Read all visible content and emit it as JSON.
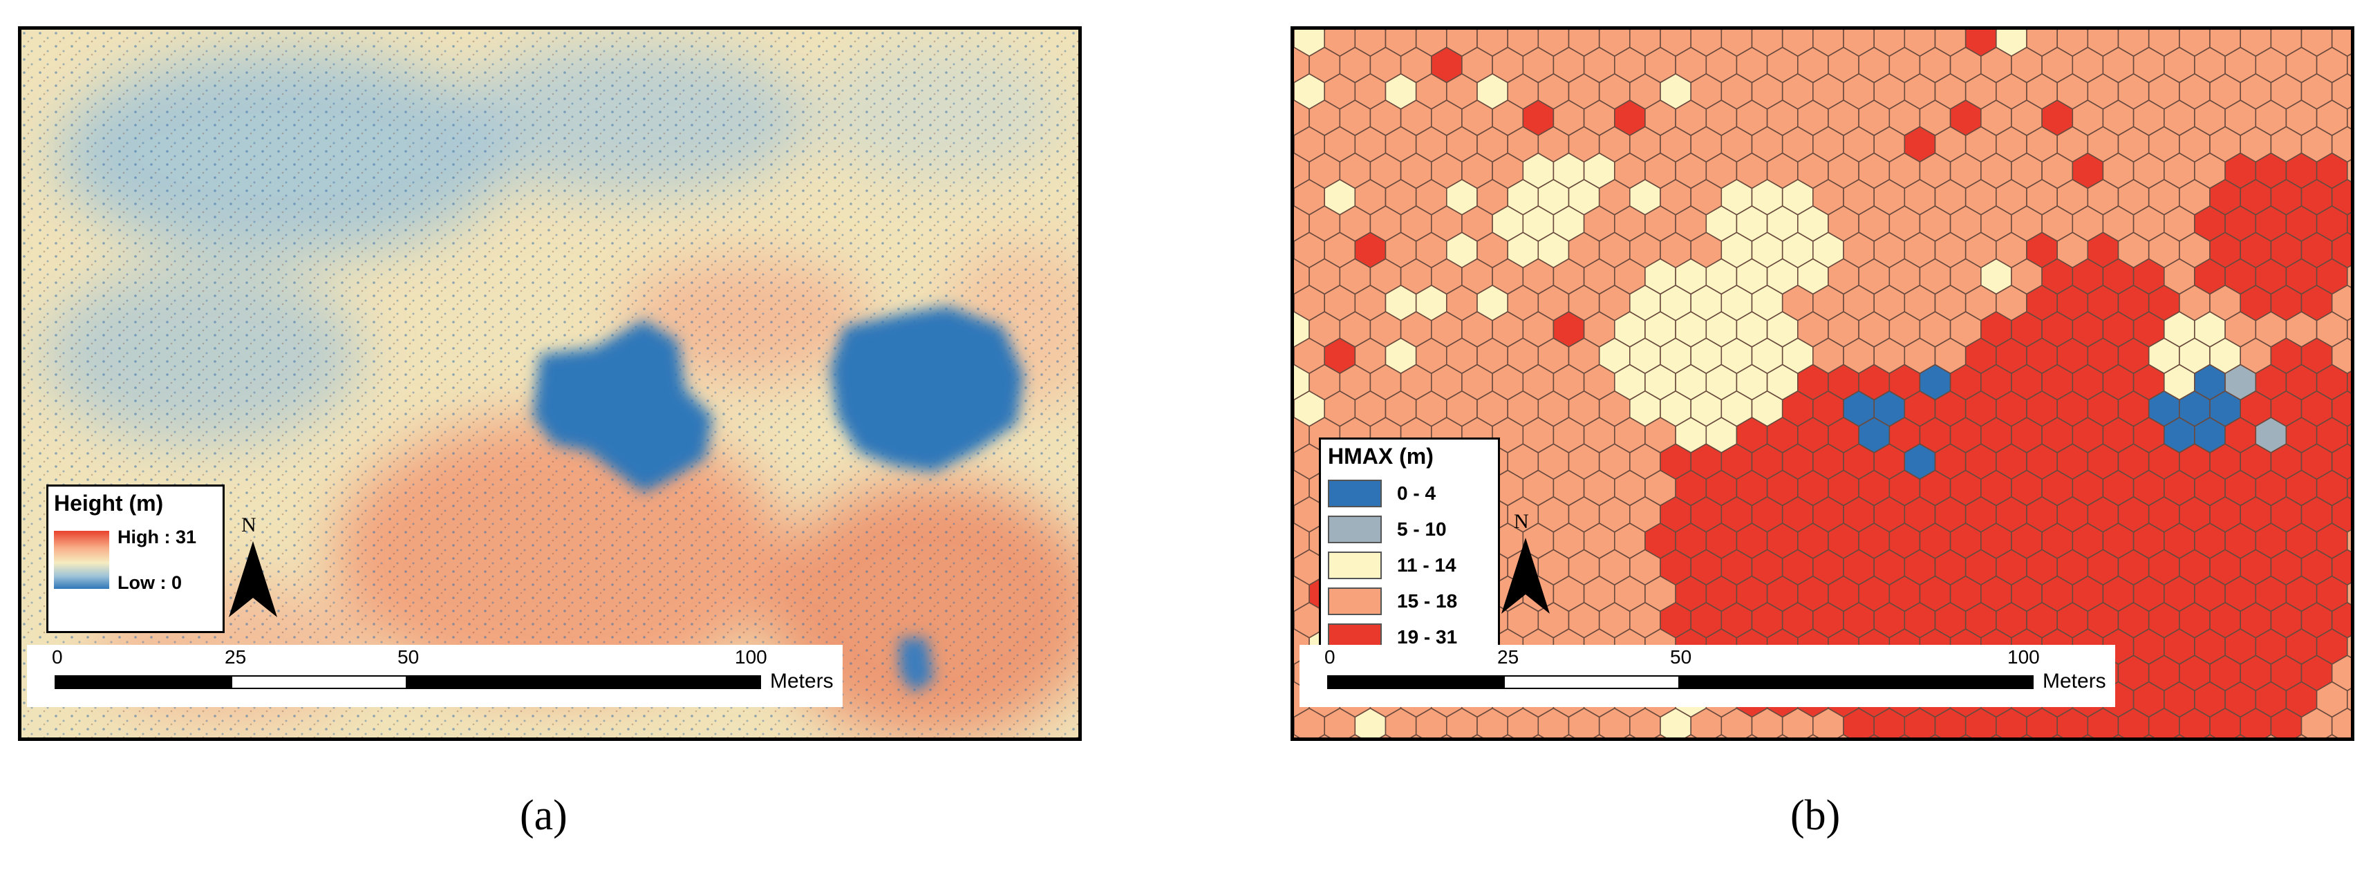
{
  "panels": {
    "a": {
      "caption": "(a)",
      "legend": {
        "title": "Height (m)",
        "high_label": "High : 31",
        "low_label": "Low : 0"
      },
      "north_label": "N",
      "scale": {
        "ticks": [
          "0",
          "25",
          "50",
          "100"
        ],
        "units": "Meters"
      }
    },
    "b": {
      "caption": "(b)",
      "legend": {
        "title": "HMAX (m)",
        "classes": [
          {
            "label": "0 - 4",
            "color": "#2d73b6"
          },
          {
            "label": "5 - 10",
            "color": "#9fb1bd"
          },
          {
            "label": "11 - 14",
            "color": "#fdf6c4"
          },
          {
            "label": "15 - 18",
            "color": "#f7a27b"
          },
          {
            "label": "19 - 31",
            "color": "#e8392c"
          }
        ]
      },
      "north_label": "N",
      "scale": {
        "ticks": [
          "0",
          "25",
          "50",
          "100"
        ],
        "units": "Meters"
      }
    }
  },
  "colors": {
    "high": "#e8412c",
    "mid": "#f6ecc0",
    "low": "#2f77b9"
  }
}
